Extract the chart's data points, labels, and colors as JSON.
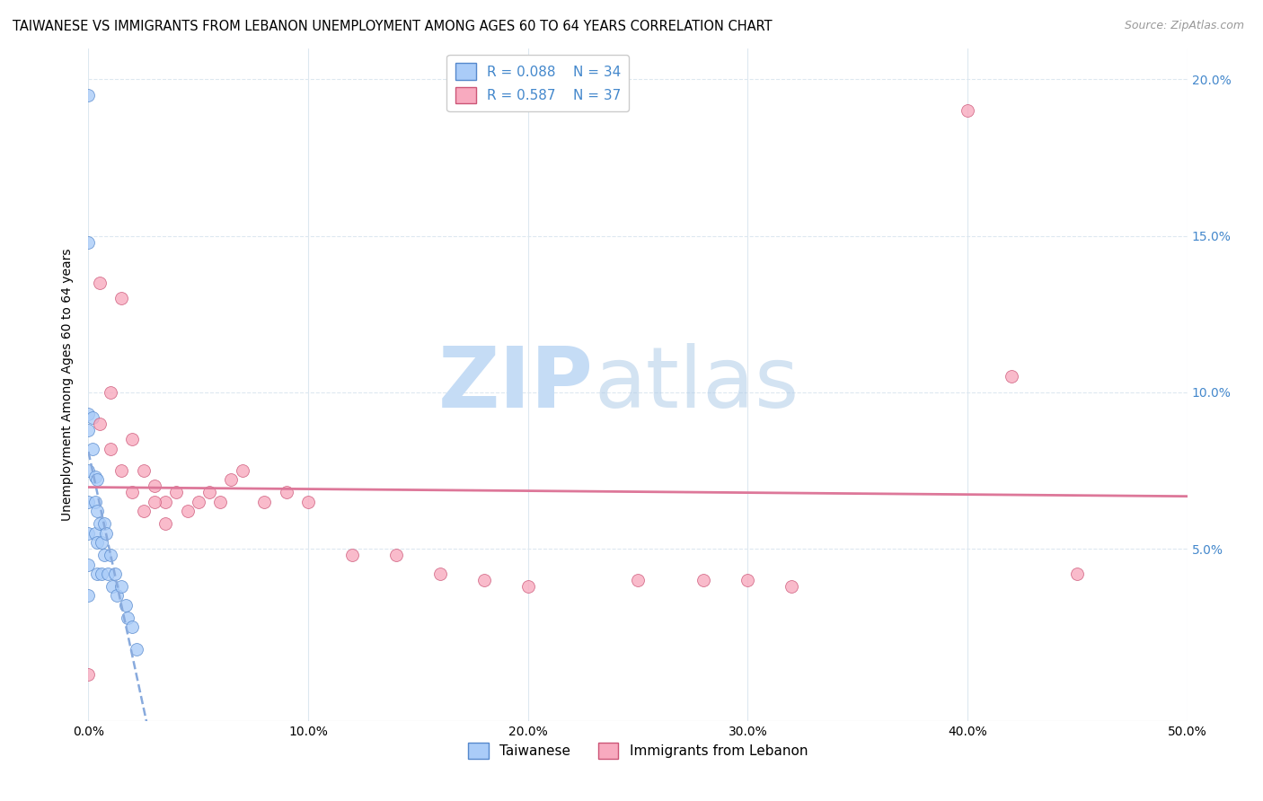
{
  "title": "TAIWANESE VS IMMIGRANTS FROM LEBANON UNEMPLOYMENT AMONG AGES 60 TO 64 YEARS CORRELATION CHART",
  "source": "Source: ZipAtlas.com",
  "ylabel": "Unemployment Among Ages 60 to 64 years",
  "xlim": [
    0,
    0.5
  ],
  "ylim": [
    -0.005,
    0.21
  ],
  "xticks": [
    0.0,
    0.1,
    0.2,
    0.3,
    0.4,
    0.5
  ],
  "xticklabels": [
    "0.0%",
    "10.0%",
    "20.0%",
    "30.0%",
    "40.0%",
    "50.0%"
  ],
  "yticks": [
    0.0,
    0.05,
    0.1,
    0.15,
    0.2
  ],
  "yticklabels_right": [
    "",
    "5.0%",
    "10.0%",
    "15.0%",
    "20.0%"
  ],
  "taiwanese_color": "#aaccf8",
  "lebanon_color": "#f8aabf",
  "taiwanese_edge": "#5588cc",
  "lebanon_edge": "#cc5577",
  "line_blue_color": "#88aadd",
  "line_pink_color": "#dd7799",
  "legend_r1": "R = 0.088",
  "legend_n1": "N = 34",
  "legend_r2": "R = 0.587",
  "legend_n2": "N = 37",
  "right_ytick_color": "#4488cc",
  "taiwanese_x": [
    0.0,
    0.0,
    0.0,
    0.0,
    0.0,
    0.0,
    0.0,
    0.0,
    0.0,
    0.002,
    0.002,
    0.003,
    0.003,
    0.003,
    0.004,
    0.004,
    0.004,
    0.004,
    0.005,
    0.006,
    0.006,
    0.007,
    0.007,
    0.008,
    0.009,
    0.01,
    0.011,
    0.012,
    0.013,
    0.015,
    0.017,
    0.018,
    0.02,
    0.022
  ],
  "taiwanese_y": [
    0.195,
    0.148,
    0.093,
    0.088,
    0.075,
    0.065,
    0.055,
    0.045,
    0.035,
    0.092,
    0.082,
    0.073,
    0.065,
    0.055,
    0.072,
    0.062,
    0.052,
    0.042,
    0.058,
    0.052,
    0.042,
    0.058,
    0.048,
    0.055,
    0.042,
    0.048,
    0.038,
    0.042,
    0.035,
    0.038,
    0.032,
    0.028,
    0.025,
    0.018
  ],
  "lebanon_x": [
    0.0,
    0.005,
    0.01,
    0.015,
    0.02,
    0.025,
    0.03,
    0.035,
    0.005,
    0.01,
    0.015,
    0.02,
    0.025,
    0.03,
    0.035,
    0.04,
    0.045,
    0.05,
    0.055,
    0.06,
    0.065,
    0.07,
    0.08,
    0.09,
    0.1,
    0.12,
    0.14,
    0.16,
    0.18,
    0.2,
    0.25,
    0.28,
    0.3,
    0.32,
    0.4,
    0.42,
    0.45
  ],
  "lebanon_y": [
    0.01,
    0.135,
    0.1,
    0.13,
    0.085,
    0.075,
    0.07,
    0.065,
    0.09,
    0.082,
    0.075,
    0.068,
    0.062,
    0.065,
    0.058,
    0.068,
    0.062,
    0.065,
    0.068,
    0.065,
    0.072,
    0.075,
    0.065,
    0.068,
    0.065,
    0.048,
    0.048,
    0.042,
    0.04,
    0.038,
    0.04,
    0.04,
    0.04,
    0.038,
    0.19,
    0.105,
    0.042
  ],
  "background_color": "#ffffff",
  "grid_color": "#dde8f0",
  "title_fontsize": 10.5,
  "axis_label_fontsize": 10,
  "tick_fontsize": 10,
  "marker_size": 100
}
